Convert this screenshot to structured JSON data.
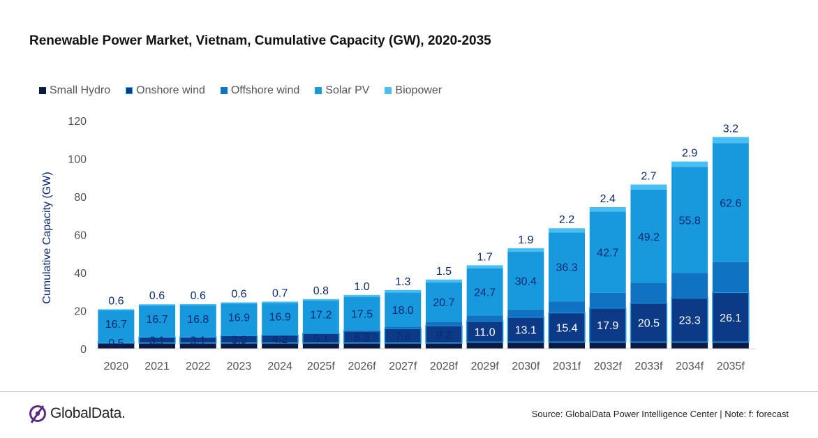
{
  "title": "Renewable Power Market, Vietnam, Cumulative Capacity (GW), 2020-2035",
  "source": "Source: GlobalData Power Intelligence Center | Note: f: forecast",
  "logo_text": "GlobalData.",
  "colors": {
    "small_hydro": "#0b1a44",
    "onshore_wind": "#0d3a86",
    "offshore_wind": "#0f72c2",
    "solar_pv": "#1899de",
    "biopower": "#48bff0",
    "label": "#0b2a6f"
  },
  "chart_data": {
    "type": "bar",
    "stacked": true,
    "title": "Renewable Power Market, Vietnam, Cumulative Capacity (GW), 2020-2035",
    "ylabel": "Cumulative Capacity (GW)",
    "xlabel": "",
    "ylim": [
      0,
      120
    ],
    "yticks": [
      0,
      20,
      40,
      60,
      80,
      100,
      120
    ],
    "grid": false,
    "legend_position": "top-left",
    "categories": [
      "2020",
      "2021",
      "2022",
      "2023",
      "2024",
      "2025f",
      "2026f",
      "2027f",
      "2028f",
      "2029f",
      "2030f",
      "2031f",
      "2032f",
      "2033f",
      "2034f",
      "2035f"
    ],
    "series": [
      {
        "name": "Small Hydro",
        "values": [
          3,
          3,
          3,
          3,
          3,
          3,
          3,
          3,
          3,
          3.5,
          3.5,
          3.5,
          3.5,
          3.5,
          3.5,
          3.5
        ]
      },
      {
        "name": "Onshore wind",
        "values": [
          0.5,
          3.1,
          3.1,
          3.9,
          4.2,
          5.1,
          6.3,
          7.6,
          9.2,
          11.0,
          13.1,
          15.4,
          17.9,
          20.5,
          23.3,
          26.1
        ]
      },
      {
        "name": "Offshore wind",
        "values": [
          0,
          0,
          0,
          0,
          0,
          0,
          0.5,
          1.0,
          2.0,
          3.0,
          4.0,
          6.0,
          8.0,
          10.5,
          13.0,
          16.0
        ]
      },
      {
        "name": "Solar PV",
        "values": [
          16.7,
          16.7,
          16.8,
          16.9,
          16.9,
          17.2,
          17.5,
          18.0,
          20.7,
          24.7,
          30.4,
          36.3,
          42.7,
          49.2,
          55.8,
          62.6
        ]
      },
      {
        "name": "Biopower",
        "values": [
          0.6,
          0.6,
          0.6,
          0.6,
          0.7,
          0.8,
          1.0,
          1.3,
          1.5,
          1.7,
          1.9,
          2.2,
          2.4,
          2.7,
          2.9,
          3.2
        ]
      }
    ],
    "data_labels": {
      "onshore_wind": [
        "0.5",
        "3.1",
        "3.1",
        "3.9",
        "4.2",
        "5.1",
        "6.3",
        "7.6",
        "9.2",
        "11.0",
        "13.1",
        "15.4",
        "17.9",
        "20.5",
        "23.3",
        "26.1"
      ],
      "solar_pv": [
        "16.7",
        "16.7",
        "16.8",
        "16.9",
        "16.9",
        "17.2",
        "17.5",
        "18.0",
        "20.7",
        "24.7",
        "30.4",
        "36.3",
        "42.7",
        "49.2",
        "55.8",
        "62.6"
      ],
      "biopower": [
        "0.6",
        "0.6",
        "0.6",
        "0.6",
        "0.7",
        "0.8",
        "1.0",
        "1.3",
        "1.5",
        "1.7",
        "1.9",
        "2.2",
        "2.4",
        "2.7",
        "2.9",
        "3.2"
      ]
    }
  }
}
